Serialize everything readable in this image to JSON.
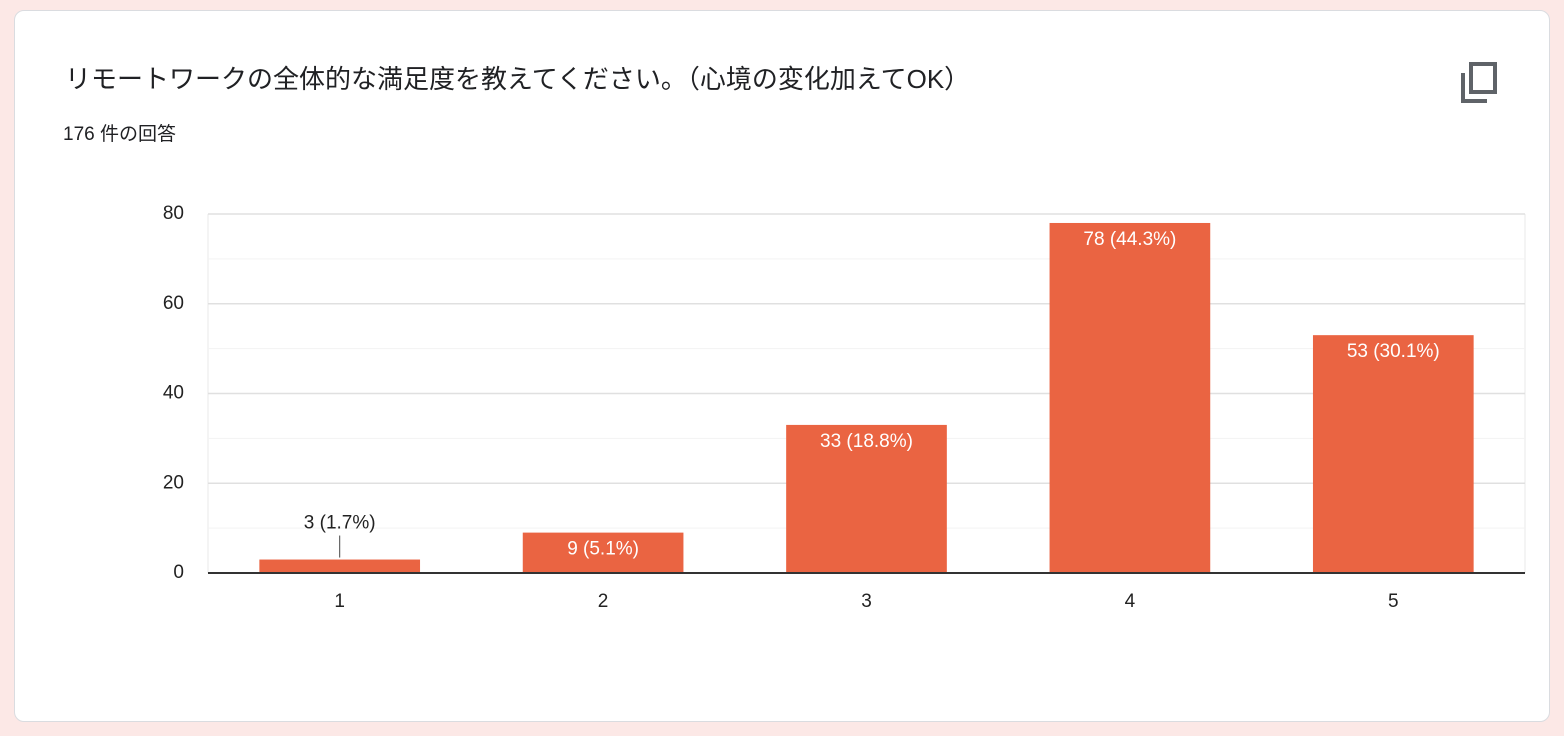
{
  "chart_data": {
    "type": "bar",
    "title": "リモートワークの全体的な満足度を教えてください。（心境の変化加えてOK）",
    "subtitle": "176 件の回答",
    "categories": [
      "1",
      "2",
      "3",
      "4",
      "5"
    ],
    "values": [
      3,
      9,
      33,
      78,
      53
    ],
    "value_labels": [
      "3 (1.7%)",
      "9 (5.1%)",
      "33 (18.8%)",
      "78 (44.3%)",
      "53 (30.1%)"
    ],
    "color": "#ea6442",
    "ylim": [
      0,
      80
    ],
    "yticks": [
      0,
      20,
      40,
      60,
      80
    ],
    "minor_yticks": [
      10,
      30,
      50,
      70
    ],
    "grid": true
  }
}
